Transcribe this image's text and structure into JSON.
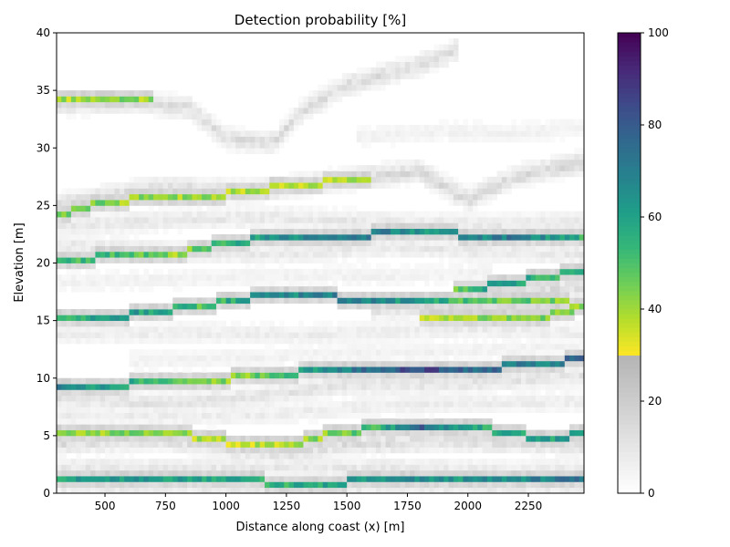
{
  "chart_data": {
    "type": "heatmap",
    "title": "Detection probability [%]",
    "xlabel": "Distance along coast (x) [m]",
    "ylabel": "Elevation [m]",
    "xlim": [
      300,
      2480
    ],
    "ylim": [
      0,
      40
    ],
    "x_ticks": [
      500,
      750,
      1000,
      1250,
      1500,
      1750,
      2000,
      2250
    ],
    "y_ticks": [
      0,
      5,
      10,
      15,
      20,
      25,
      30,
      35,
      40
    ],
    "colorbar": {
      "range": [
        0,
        100
      ],
      "ticks": [
        0,
        20,
        40,
        60,
        80,
        100
      ],
      "grey_below": 30,
      "colormap": "viridis_r above 30, greys below 30"
    },
    "cell_size": {
      "dx": 20,
      "dz": 0.5
    },
    "strong_bands": [
      {
        "points": [
          [
            300,
            1.2
          ],
          [
            1000,
            1.2
          ],
          [
            1250,
            0.9
          ],
          [
            1750,
            1.1
          ],
          [
            2480,
            1.2
          ]
        ],
        "values": [
          [
            300,
            60
          ],
          [
            700,
            62
          ],
          [
            1000,
            60
          ],
          [
            1250,
            55
          ],
          [
            1500,
            60
          ],
          [
            1750,
            65
          ],
          [
            2000,
            63
          ],
          [
            2480,
            72
          ]
        ]
      },
      {
        "points": [
          [
            300,
            5.1
          ],
          [
            600,
            5.5
          ],
          [
            800,
            5.2
          ],
          [
            1000,
            4.5
          ],
          [
            1250,
            4.0
          ],
          [
            1400,
            5.0
          ],
          [
            1600,
            5.6
          ],
          [
            1900,
            5.8
          ],
          [
            2100,
            5.5
          ],
          [
            2300,
            4.8
          ],
          [
            2480,
            5.1
          ]
        ],
        "values": [
          [
            300,
            38
          ],
          [
            600,
            45
          ],
          [
            800,
            40
          ],
          [
            1000,
            35
          ],
          [
            1300,
            38
          ],
          [
            1600,
            50
          ],
          [
            1800,
            78
          ],
          [
            2000,
            55
          ],
          [
            2300,
            60
          ],
          [
            2480,
            60
          ]
        ]
      },
      {
        "points": [
          [
            300,
            9.2
          ],
          [
            700,
            9.6
          ],
          [
            900,
            9.7
          ],
          [
            1100,
            10.2
          ],
          [
            1500,
            10.8
          ],
          [
            1800,
            10.8
          ],
          [
            2000,
            10.8
          ],
          [
            2300,
            11.2
          ],
          [
            2480,
            11.7
          ]
        ],
        "values": [
          [
            300,
            70
          ],
          [
            600,
            55
          ],
          [
            900,
            40
          ],
          [
            1100,
            45
          ],
          [
            1500,
            70
          ],
          [
            1800,
            85
          ],
          [
            2100,
            75
          ],
          [
            2300,
            65
          ],
          [
            2480,
            80
          ]
        ]
      },
      {
        "points": [
          [
            300,
            15.1
          ],
          [
            600,
            15.5
          ],
          [
            900,
            16.3
          ],
          [
            1100,
            17.0
          ],
          [
            1400,
            17.1
          ],
          [
            1700,
            16.6
          ],
          [
            2000,
            16.7
          ],
          [
            2300,
            17.0
          ],
          [
            2480,
            16.3
          ]
        ],
        "values": [
          [
            300,
            55
          ],
          [
            600,
            62
          ],
          [
            900,
            50
          ],
          [
            1200,
            65
          ],
          [
            1500,
            70
          ],
          [
            1750,
            62
          ],
          [
            2000,
            50
          ],
          [
            2300,
            45
          ],
          [
            2480,
            40
          ]
        ]
      },
      {
        "points": [
          [
            1800,
            15.2
          ],
          [
            2100,
            15.1
          ],
          [
            2300,
            15.3
          ],
          [
            2480,
            16.2
          ]
        ],
        "values": [
          [
            1800,
            40
          ],
          [
            2100,
            42
          ],
          [
            2300,
            45
          ],
          [
            2480,
            40
          ]
        ]
      },
      {
        "points": [
          [
            1950,
            17.5
          ],
          [
            2100,
            18.1
          ],
          [
            2300,
            18.7
          ],
          [
            2480,
            19.3
          ]
        ],
        "values": [
          [
            1950,
            48
          ],
          [
            2150,
            62
          ],
          [
            2300,
            55
          ],
          [
            2480,
            55
          ]
        ]
      },
      {
        "points": [
          [
            300,
            20.0
          ],
          [
            600,
            20.9
          ],
          [
            800,
            20.8
          ],
          [
            1000,
            21.8
          ],
          [
            1250,
            22.3
          ],
          [
            1600,
            22.5
          ],
          [
            1900,
            22.6
          ],
          [
            2150,
            22.2
          ],
          [
            2480,
            22.5
          ]
        ],
        "values": [
          [
            300,
            50
          ],
          [
            600,
            52
          ],
          [
            800,
            40
          ],
          [
            1000,
            55
          ],
          [
            1250,
            65
          ],
          [
            1600,
            70
          ],
          [
            1900,
            62
          ],
          [
            2200,
            72
          ],
          [
            2480,
            55
          ]
        ]
      },
      {
        "points": [
          [
            300,
            24.2
          ],
          [
            450,
            25.0
          ],
          [
            700,
            25.8
          ],
          [
            1000,
            26.0
          ],
          [
            1250,
            26.7
          ],
          [
            1400,
            27.0
          ],
          [
            1600,
            27.0
          ]
        ],
        "values": [
          [
            300,
            45
          ],
          [
            600,
            42
          ],
          [
            900,
            40
          ],
          [
            1200,
            38
          ],
          [
            1450,
            36
          ],
          [
            1600,
            38
          ]
        ]
      },
      {
        "points": [
          [
            300,
            34.0
          ],
          [
            450,
            34.4
          ],
          [
            700,
            34.2
          ]
        ],
        "values": [
          [
            300,
            38
          ],
          [
            450,
            42
          ],
          [
            700,
            40
          ]
        ]
      }
    ],
    "faint_bands": [
      {
        "points": [
          [
            300,
            33.8
          ],
          [
            600,
            34.0
          ],
          [
            850,
            33.5
          ],
          [
            1000,
            30.8
          ],
          [
            1200,
            30.5
          ],
          [
            1300,
            33.0
          ],
          [
            1500,
            35.5
          ],
          [
            1800,
            37.2
          ],
          [
            1950,
            38.5
          ]
        ],
        "value": 14
      },
      {
        "points": [
          [
            300,
            25.0
          ],
          [
            700,
            26.5
          ],
          [
            1100,
            26.2
          ],
          [
            1500,
            27.3
          ],
          [
            1800,
            28.0
          ],
          [
            2000,
            25.5
          ],
          [
            2200,
            27.5
          ],
          [
            2480,
            28.8
          ]
        ],
        "value": 16
      },
      {
        "points": [
          [
            300,
            23.2
          ],
          [
            800,
            23.8
          ],
          [
            1200,
            24.0
          ],
          [
            1700,
            23.5
          ],
          [
            2100,
            23.3
          ],
          [
            2480,
            23.6
          ]
        ],
        "value": 10
      },
      {
        "points": [
          [
            300,
            21.6
          ],
          [
            800,
            21.0
          ],
          [
            1200,
            20.8
          ],
          [
            1700,
            21.5
          ],
          [
            2100,
            21.0
          ],
          [
            2480,
            20.8
          ]
        ],
        "value": 10
      },
      {
        "points": [
          [
            1600,
            16.0
          ],
          [
            1900,
            16.4
          ],
          [
            2200,
            17.5
          ],
          [
            2480,
            18.0
          ]
        ],
        "value": 14
      },
      {
        "points": [
          [
            300,
            13.8
          ],
          [
            800,
            14.0
          ],
          [
            1400,
            13.8
          ],
          [
            2000,
            14.3
          ],
          [
            2480,
            13.9
          ]
        ],
        "value": 8
      },
      {
        "points": [
          [
            300,
            8.3
          ],
          [
            700,
            7.8
          ],
          [
            1100,
            8.3
          ],
          [
            1500,
            9.5
          ],
          [
            2000,
            9.6
          ],
          [
            2480,
            10.3
          ]
        ],
        "value": 12
      },
      {
        "points": [
          [
            300,
            6.8
          ],
          [
            800,
            6.7
          ],
          [
            1200,
            6.9
          ],
          [
            1600,
            7.6
          ],
          [
            2100,
            7.9
          ],
          [
            2480,
            8.0
          ]
        ],
        "value": 8
      },
      {
        "points": [
          [
            300,
            4.3
          ],
          [
            700,
            4.8
          ],
          [
            1000,
            4.0
          ],
          [
            1250,
            3.6
          ],
          [
            1500,
            4.3
          ],
          [
            2000,
            4.6
          ],
          [
            2480,
            4.2
          ]
        ],
        "value": 15
      },
      {
        "points": [
          [
            300,
            2.3
          ],
          [
            800,
            2.1
          ],
          [
            1250,
            2.3
          ],
          [
            1700,
            2.2
          ],
          [
            2200,
            1.9
          ],
          [
            2480,
            2.1
          ]
        ],
        "value": 10
      },
      {
        "points": [
          [
            300,
            0.6
          ],
          [
            800,
            0.5
          ],
          [
            1400,
            0.4
          ],
          [
            2000,
            0.5
          ],
          [
            2480,
            0.6
          ]
        ],
        "value": 10
      },
      {
        "points": [
          [
            600,
            11.5
          ],
          [
            1100,
            11.8
          ],
          [
            1700,
            12.3
          ],
          [
            2200,
            12.5
          ],
          [
            2480,
            12.8
          ]
        ],
        "value": 6
      },
      {
        "points": [
          [
            300,
            18.4
          ],
          [
            800,
            18.6
          ],
          [
            1200,
            18.9
          ],
          [
            1700,
            18.9
          ],
          [
            2100,
            19.2
          ]
        ],
        "value": 6
      },
      {
        "points": [
          [
            1550,
            31.0
          ],
          [
            1900,
            31.4
          ],
          [
            2200,
            31.3
          ],
          [
            2480,
            31.8
          ]
        ],
        "value": 6
      }
    ]
  }
}
